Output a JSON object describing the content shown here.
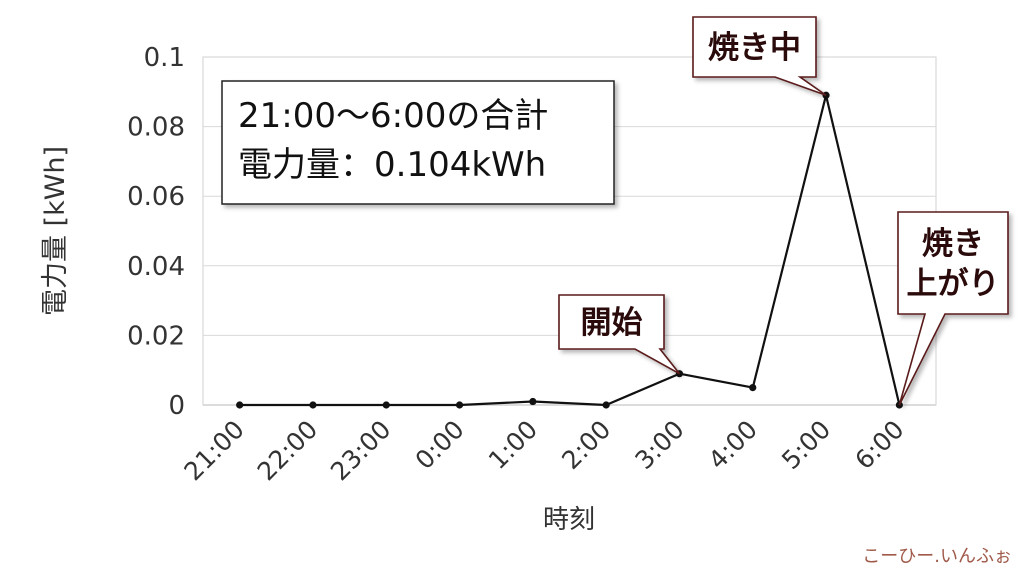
{
  "chart_data": {
    "type": "line",
    "categories": [
      "21:00",
      "22:00",
      "23:00",
      "0:00",
      "1:00",
      "2:00",
      "3:00",
      "4:00",
      "5:00",
      "6:00"
    ],
    "series": [
      {
        "values": [
          0,
          0,
          0,
          0,
          0.001,
          0,
          0.009,
          0.005,
          0.089,
          0
        ]
      }
    ],
    "xlabel": "時刻",
    "ylabel": "電力量 [kWh]",
    "ylim": [
      0,
      0.1
    ],
    "yticks": [
      0,
      0.02,
      0.04,
      0.06,
      0.08,
      0.1
    ],
    "ytick_labels": [
      "0",
      "0.02",
      "0.04",
      "0.06",
      "0.08",
      "0.1"
    ],
    "grid": true,
    "annotations": [
      {
        "lines": [
          "開始"
        ],
        "category": "3:00"
      },
      {
        "lines": [
          "焼き中"
        ],
        "category": "5:00"
      },
      {
        "lines": [
          "焼き",
          "上がり"
        ],
        "category": "6:00"
      }
    ],
    "summary_box": {
      "lines": [
        "21:00～6:00の合計",
        "電力量：0.104kWh"
      ]
    }
  },
  "watermark": "こーひー.いんふぉ",
  "colors": {
    "line": "#111111",
    "grid": "#d9d9d9",
    "axis_text": "#333333",
    "callout_border": "#5a1a1a",
    "callout_text": "#2a0a0a",
    "watermark": "#a05a4a"
  }
}
